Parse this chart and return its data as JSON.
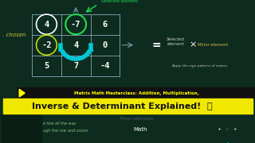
{
  "bg_color": "#0d2b1e",
  "title_bar_color": "#111111",
  "title_text": "Matrix Math Masterclass: Addition, Multiplication,",
  "title_text_color": "#ffff00",
  "banner_color": "#f0e800",
  "banner_text": "Inverse & Determinant Explained!  🧠",
  "banner_text_color": "#111111",
  "matrix_numbers": [
    [
      "4",
      "-7",
      "6"
    ],
    [
      "-2",
      "4",
      "0"
    ],
    [
      "5",
      "7",
      "-4"
    ]
  ],
  "matrix_color": "#ffffff",
  "grid_color": "#7799aa",
  "highlight_color": "#00c8d4",
  "circle_green_color": "#22dd55",
  "circle_white_color": "#ffffff",
  "selected_text": "Selected element",
  "selected_color": "#22dd55",
  "chosen_text": ". chosen",
  "chosen_color": "#cccc44",
  "equals_color": "#ffffff",
  "rhs_selected": "Selected\nelement",
  "rhs_selected_color": "#cccccc",
  "rhs_x": "×",
  "rhs_minor": "Minor element",
  "rhs_minor_color": "#ddbb44",
  "sign_text": "Apply the sign pattern of matrix",
  "sign_color": "#cccccc",
  "bottom_text1": "e line all the way",
  "bottom_text2": "ugh the row and colum",
  "bottom_text1_color": "#88cc88",
  "math_text": "Math",
  "math_color": "#ffffff",
  "plus_minus_text": "+   -   +",
  "plus_minus_color": "#ffffff",
  "person_bg": "#0a1f15"
}
